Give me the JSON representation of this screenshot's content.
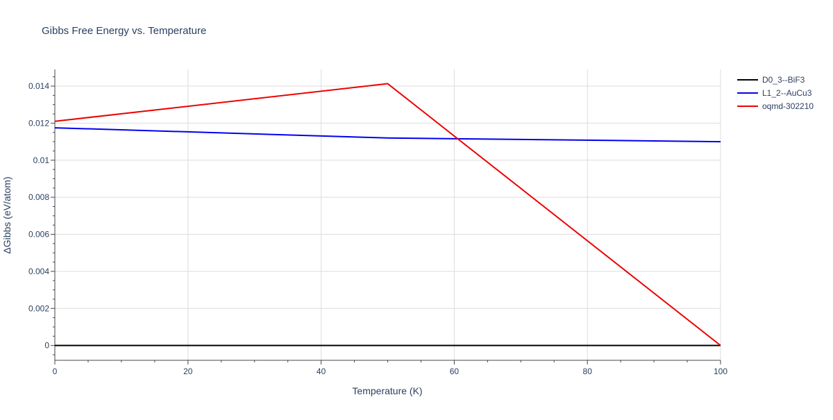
{
  "chart_data": {
    "type": "line",
    "title": "Gibbs Free Energy vs. Temperature",
    "xlabel": "Temperature (K)",
    "ylabel": "ΔGibbs (eV/atom)",
    "xlim": [
      0,
      100
    ],
    "ylim": [
      -0.0008,
      0.0149
    ],
    "x_ticks": [
      0,
      20,
      40,
      60,
      80,
      100
    ],
    "x_tick_labels": [
      "0",
      "20",
      "40",
      "60",
      "80",
      "100"
    ],
    "y_ticks": [
      0,
      0.002,
      0.004,
      0.006,
      0.008,
      0.01,
      0.012,
      0.014
    ],
    "y_tick_labels": [
      "0",
      "0.002",
      "0.004",
      "0.006",
      "0.008",
      "0.01",
      "0.012",
      "0.014"
    ],
    "grid": true,
    "legend_position": "top-right",
    "series": [
      {
        "name": "D0_3--BiF3",
        "color": "#000000",
        "x": [
          0,
          100
        ],
        "y": [
          0,
          0
        ]
      },
      {
        "name": "L1_2--AuCu3",
        "color": "#0000ee",
        "x": [
          0,
          50,
          100
        ],
        "y": [
          0.01175,
          0.0112,
          0.011
        ]
      },
      {
        "name": "oqmd-302210",
        "color": "#ee0000",
        "x": [
          0,
          50,
          100
        ],
        "y": [
          0.0121,
          0.01413,
          0
        ]
      }
    ]
  }
}
